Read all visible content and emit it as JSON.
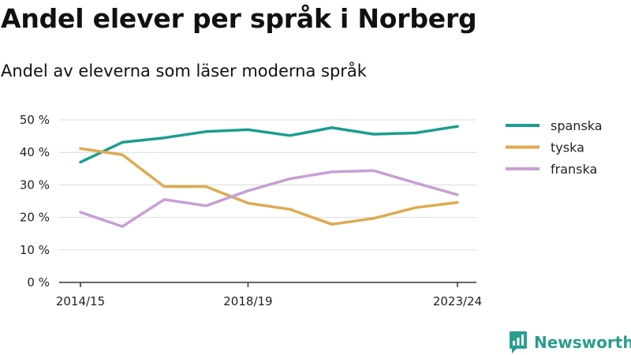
{
  "page": {
    "title": "Andel elever per språk i Norberg",
    "subtitle": "Andel av eleverna som läser moderna språk",
    "brand": "Newsworthy",
    "brand_icon": "newsworthy-logo-icon"
  },
  "chart_data": {
    "type": "line",
    "title": "Andel elever per språk i Norberg",
    "subtitle": "Andel av eleverna som läser moderna språk",
    "xlabel": "",
    "ylabel": "",
    "x": [
      "2014/15",
      "2015/16",
      "2016/17",
      "2017/18",
      "2018/19",
      "2019/20",
      "2020/21",
      "2021/22",
      "2022/23",
      "2023/24"
    ],
    "x_tick_labels": [
      "2014/15",
      "2018/19",
      "2023/24"
    ],
    "y_ticks": [
      0,
      10,
      20,
      30,
      40,
      50
    ],
    "y_tick_labels": [
      "0 %",
      "10 %",
      "20 %",
      "30 %",
      "40 %",
      "50 %"
    ],
    "ylim": [
      0,
      50
    ],
    "grid": "horizontal",
    "legend_position": "right",
    "series": [
      {
        "name": "spanska",
        "color": "#1a9e8f",
        "values": [
          37.0,
          43.1,
          44.5,
          46.4,
          47.0,
          45.2,
          47.6,
          45.6,
          46.0,
          48.0
        ]
      },
      {
        "name": "tyska",
        "color": "#deaa4f",
        "values": [
          41.2,
          39.3,
          29.5,
          29.5,
          24.4,
          22.5,
          17.9,
          19.7,
          23.0,
          24.6
        ]
      },
      {
        "name": "franska",
        "color": "#c79fd4",
        "values": [
          21.6,
          17.2,
          25.5,
          23.6,
          28.2,
          31.9,
          34.0,
          34.4,
          30.6,
          27.0
        ]
      }
    ]
  }
}
